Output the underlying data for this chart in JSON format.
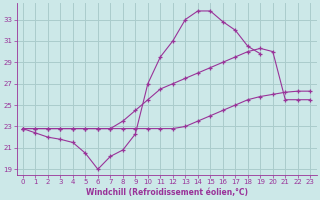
{
  "bg_color": "#cce8e8",
  "grid_color": "#aacccc",
  "line_color": "#993399",
  "marker_color": "#993399",
  "xlabel": "Windchill (Refroidissement éolien,°C)",
  "xlabel_color": "#993399",
  "tick_color": "#993399",
  "xlim": [
    -0.5,
    23.5
  ],
  "ylim": [
    18.5,
    34.5
  ],
  "yticks": [
    19,
    21,
    23,
    25,
    27,
    29,
    31,
    33
  ],
  "xticks": [
    0,
    1,
    2,
    3,
    4,
    5,
    6,
    7,
    8,
    9,
    10,
    11,
    12,
    13,
    14,
    15,
    16,
    17,
    18,
    19,
    20,
    21,
    22,
    23
  ],
  "series": [
    {
      "x": [
        0,
        1,
        2,
        3,
        4,
        5,
        6,
        7,
        8,
        9,
        10,
        11,
        12,
        13,
        14,
        15,
        16,
        17,
        18,
        19,
        20,
        21,
        22,
        23
      ],
      "y": [
        22.8,
        22.8,
        22.8,
        22.8,
        22.8,
        22.8,
        22.8,
        22.8,
        22.8,
        22.8,
        22.8,
        22.8,
        22.8,
        23.0,
        23.5,
        24.0,
        24.5,
        25.0,
        25.5,
        25.8,
        26.0,
        26.2,
        26.3,
        26.3
      ]
    },
    {
      "x": [
        0,
        1,
        2,
        3,
        4,
        5,
        6,
        7,
        8,
        9,
        10,
        11,
        12,
        13,
        14,
        15,
        16,
        17,
        18,
        19,
        20,
        21,
        22,
        23
      ],
      "y": [
        22.8,
        22.4,
        22.0,
        21.8,
        21.5,
        20.5,
        19.0,
        20.2,
        20.8,
        22.3,
        27.0,
        29.5,
        31.0,
        33.0,
        33.8,
        33.8,
        32.8,
        32.0,
        30.5,
        29.8,
        null,
        null,
        null,
        null
      ]
    },
    {
      "x": [
        0,
        1,
        2,
        3,
        4,
        5,
        6,
        7,
        8,
        9,
        10,
        11,
        12,
        13,
        14,
        15,
        16,
        17,
        18,
        19,
        20,
        21,
        22,
        23
      ],
      "y": [
        22.8,
        22.8,
        22.8,
        22.8,
        22.8,
        22.8,
        22.8,
        22.8,
        23.5,
        24.5,
        25.5,
        26.5,
        27.0,
        27.5,
        28.0,
        28.5,
        29.0,
        29.5,
        30.0,
        30.3,
        30.0,
        25.5,
        25.5,
        25.5
      ]
    }
  ]
}
